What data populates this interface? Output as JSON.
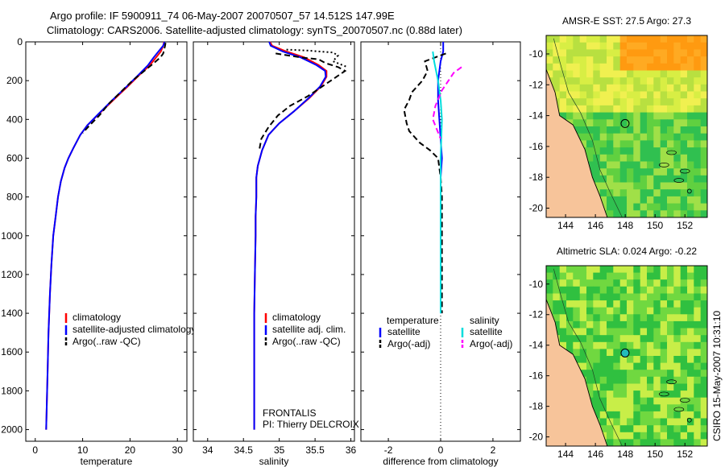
{
  "title_line1": "Argo profile: IF 5900911_74 06-May-2007 20070507_57 14.512S 147.99E",
  "title_line2": "Climatology: CARS2006. Satellite-adjusted climatology: synTS_20070507.nc (0.88d later)",
  "side_stamp": "CSIRO 15-May-2007 10:31:10",
  "colors": {
    "climatology": "#ff0000",
    "satellite": "#0000ff",
    "argo": "#000000",
    "salinity_sat": "#00dddd",
    "salinity_argo": "#ff00ff"
  },
  "chart_data": [
    {
      "id": "temperature",
      "type": "line",
      "xlabel": "temperature",
      "ylabel": "",
      "xlim": [
        -2,
        32
      ],
      "ylim": [
        2060,
        0
      ],
      "xticks": [
        0,
        10,
        20,
        30
      ],
      "yticks": [
        0,
        200,
        400,
        600,
        800,
        1000,
        1200,
        1400,
        1600,
        1800,
        2000
      ],
      "legend": [
        "climatology",
        "satellite-adjusted climatology",
        "Argo(..raw -QC)"
      ],
      "series": [
        {
          "name": "climatology",
          "style": "solid",
          "color": "climatology",
          "x": [
            27.2,
            27.0,
            26.5,
            25.5,
            24.2,
            22.0,
            19.5,
            16.5,
            13.5,
            11.0,
            9.5,
            8.0,
            7.0,
            6.2,
            5.4,
            4.8,
            4.3,
            3.8,
            3.4,
            3.1,
            2.8,
            2.6,
            2.4,
            2.3
          ],
          "y": [
            0,
            20,
            50,
            80,
            120,
            170,
            230,
            300,
            370,
            430,
            480,
            550,
            600,
            650,
            720,
            800,
            900,
            1000,
            1150,
            1300,
            1500,
            1700,
            1900,
            2000
          ]
        },
        {
          "name": "satellite-adjusted climatology",
          "style": "solid",
          "color": "satellite",
          "x": [
            27.3,
            27.0,
            26.0,
            25.0,
            23.8,
            21.8,
            19.3,
            16.3,
            13.4,
            11.0,
            9.5,
            8.0,
            7.0,
            6.2,
            5.4,
            4.8,
            4.3,
            3.8,
            3.4,
            3.1,
            2.8,
            2.6,
            2.4,
            2.3
          ],
          "y": [
            0,
            20,
            50,
            80,
            120,
            170,
            230,
            300,
            370,
            430,
            480,
            550,
            600,
            650,
            720,
            800,
            900,
            1000,
            1150,
            1300,
            1500,
            1700,
            1900,
            2000
          ]
        },
        {
          "name": "Argo(..raw -QC)",
          "style": "dash",
          "color": "argo",
          "x": [
            27.5,
            27.4,
            27.2,
            27.0,
            26.4,
            25.0,
            23.0,
            20.5,
            18.0,
            15.5,
            13.5,
            11.5,
            10.0
          ],
          "y": [
            5,
            20,
            40,
            60,
            80,
            110,
            150,
            200,
            260,
            320,
            380,
            430,
            470
          ]
        }
      ]
    },
    {
      "id": "salinity",
      "type": "line",
      "xlabel": "salinity",
      "ylabel": "",
      "xlim": [
        33.8,
        36.05
      ],
      "ylim": [
        2060,
        0
      ],
      "xticks": [
        34,
        34.5,
        35,
        35.5,
        36
      ],
      "yticks": [
        0,
        200,
        400,
        600,
        800,
        1000,
        1200,
        1400,
        1600,
        1800,
        2000
      ],
      "legend": [
        "climatology",
        "satellite adj. clim.",
        "Argo(..raw -QC)"
      ],
      "annotation": [
        "FRONTALIS",
        "PI: Thierry DELCROIX"
      ],
      "series": [
        {
          "name": "climatology",
          "style": "solid",
          "color": "climatology",
          "x": [
            34.87,
            34.9,
            35.1,
            35.35,
            35.55,
            35.66,
            35.66,
            35.58,
            35.42,
            35.2,
            35.0,
            34.85,
            34.76,
            34.7,
            34.68,
            34.68,
            34.67,
            34.67,
            34.66,
            34.65,
            34.65,
            34.65,
            34.65
          ],
          "y": [
            0,
            20,
            50,
            80,
            120,
            150,
            180,
            230,
            290,
            360,
            420,
            480,
            560,
            640,
            700,
            800,
            900,
            1000,
            1200,
            1400,
            1600,
            1800,
            2000
          ]
        },
        {
          "name": "satellite adj. clim.",
          "style": "solid",
          "color": "satellite",
          "x": [
            34.86,
            34.88,
            35.05,
            35.3,
            35.52,
            35.64,
            35.65,
            35.57,
            35.41,
            35.2,
            35.0,
            34.85,
            34.76,
            34.7,
            34.68,
            34.68,
            34.67,
            34.67,
            34.66,
            34.65,
            34.65,
            34.65,
            34.65
          ],
          "y": [
            0,
            20,
            50,
            80,
            120,
            150,
            180,
            230,
            290,
            360,
            420,
            480,
            560,
            640,
            700,
            800,
            900,
            1000,
            1200,
            1400,
            1600,
            1800,
            2000
          ]
        },
        {
          "name": "Argo(..raw -QC)",
          "style": "dash",
          "color": "argo",
          "x": [
            34.95,
            35.3,
            35.55,
            35.65,
            35.82,
            35.92,
            35.8,
            35.6,
            35.4,
            35.15,
            34.98,
            34.85,
            34.75,
            34.72
          ],
          "y": [
            60,
            80,
            90,
            110,
            130,
            150,
            180,
            230,
            280,
            330,
            380,
            440,
            500,
            560
          ]
        },
        {
          "name": "Argo(..raw -QC) near surface",
          "style": "dot",
          "color": "argo",
          "x": [
            35.1,
            35.4,
            35.75,
            35.82,
            35.75,
            35.95
          ],
          "y": [
            40,
            45,
            55,
            70,
            100,
            130
          ]
        }
      ]
    },
    {
      "id": "difference",
      "type": "line",
      "xlabel": "difference from climatology",
      "ylabel": "",
      "xlim": [
        -3.05,
        3.05
      ],
      "ylim": [
        2060,
        0
      ],
      "xticks": [
        -2,
        0,
        2
      ],
      "yticks": [
        0,
        200,
        400,
        600,
        800,
        1000,
        1200,
        1400,
        1600,
        1800,
        2000
      ],
      "legend_headers": [
        "temperature",
        "salinity"
      ],
      "legend": [
        "satellite",
        "Argo(-adj)",
        "satellite",
        "Argo(-adj)"
      ],
      "series": [
        {
          "name": "temperature satellite",
          "style": "solid",
          "color": "satellite",
          "x": [
            0.1,
            0.1,
            0.0,
            -0.1,
            -0.1,
            -0.05,
            0.0,
            0.05,
            0.0,
            0.0,
            0.0,
            0.0
          ],
          "y": [
            0,
            50,
            100,
            200,
            300,
            400,
            500,
            600,
            700,
            800,
            1000,
            1400
          ]
        },
        {
          "name": "temperature Argo(-adj)",
          "style": "dash",
          "color": "argo",
          "x": [
            0.2,
            -0.6,
            -0.5,
            -0.7,
            -1.1,
            -1.2,
            -1.4,
            -1.3,
            -1.2,
            -0.8,
            -0.4,
            -0.1,
            0.0,
            0.05,
            0.05
          ],
          "y": [
            60,
            100,
            150,
            200,
            260,
            300,
            350,
            420,
            460,
            520,
            560,
            600,
            700,
            800,
            1400
          ]
        },
        {
          "name": "salinity satellite",
          "style": "solid",
          "color": "salinity_sat",
          "x": [
            -0.3,
            -0.25,
            -0.1,
            0.0,
            0.05,
            0.0,
            0.0,
            0.0
          ],
          "y": [
            50,
            100,
            200,
            300,
            400,
            600,
            900,
            1400
          ]
        },
        {
          "name": "salinity Argo(-adj)",
          "style": "dash",
          "color": "salinity_argo",
          "x": [
            0.8,
            0.5,
            0.3,
            0.05,
            -0.2,
            -0.3,
            -0.15,
            0.0
          ],
          "y": [
            130,
            160,
            200,
            250,
            330,
            400,
            450,
            500
          ]
        }
      ]
    },
    {
      "id": "sst_map",
      "type": "heatmap",
      "title": "AMSR-E SST: 27.5  Argo: 27.3",
      "xticks": [
        144,
        146,
        148,
        150,
        152
      ],
      "yticks": [
        -10,
        -12,
        -14,
        -16,
        -18,
        -20
      ],
      "xlim": [
        142.7,
        153.5
      ],
      "ylim": [
        -20.6,
        -8.8
      ],
      "float_position": {
        "lon": 147.99,
        "lat": -14.512
      }
    },
    {
      "id": "sla_map",
      "type": "heatmap",
      "title": "Altimetric SLA: 0.024  Argo: -0.22",
      "xticks": [
        144,
        146,
        148,
        150,
        152
      ],
      "yticks": [
        -10,
        -12,
        -14,
        -16,
        -18,
        -20
      ],
      "xlim": [
        142.7,
        153.5
      ],
      "ylim": [
        -20.6,
        -8.8
      ],
      "float_position": {
        "lon": 147.99,
        "lat": -14.512
      }
    }
  ]
}
